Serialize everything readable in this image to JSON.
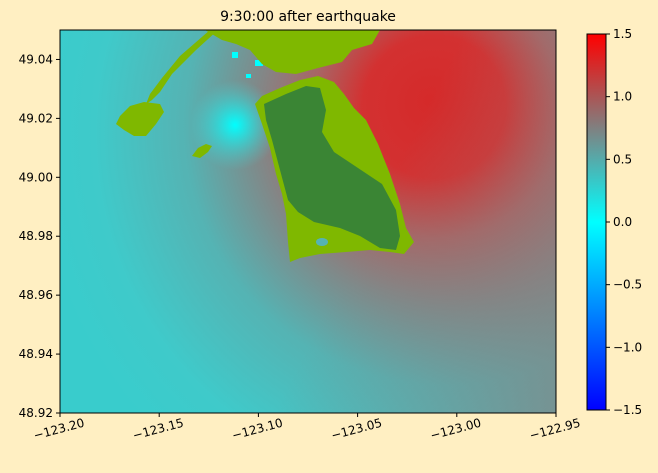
{
  "chart_data": {
    "type": "heatmap",
    "title": "9:30:00 after earthquake",
    "xlabel": "",
    "ylabel": "",
    "xlim": [
      -123.2,
      -122.95
    ],
    "ylim": [
      48.92,
      49.05
    ],
    "x_ticks": [
      "−123.20",
      "−123.15",
      "−123.10",
      "−123.05",
      "−123.00",
      "−122.95"
    ],
    "x_tick_values": [
      -123.2,
      -123.15,
      -123.1,
      -123.05,
      -123.0,
      -122.95
    ],
    "y_ticks": [
      "48.92",
      "48.94",
      "48.96",
      "48.98",
      "49.00",
      "49.02",
      "49.04"
    ],
    "y_tick_values": [
      48.92,
      48.94,
      48.96,
      48.98,
      49.0,
      49.02,
      49.04
    ],
    "colorbar": {
      "min": -1.5,
      "max": 1.5,
      "ticks": [
        "−1.5",
        "−1.0",
        "−0.5",
        "0.0",
        "0.5",
        "1.0",
        "1.5"
      ],
      "tick_values": [
        -1.5,
        -1.0,
        -0.5,
        0.0,
        0.5,
        1.0,
        1.5
      ],
      "colors": [
        "#0000ff",
        "#00ffff",
        "#808080",
        "#ff0000"
      ],
      "stops": [
        -1.5,
        0.0,
        0.75,
        1.5
      ]
    },
    "water_gradient": {
      "west_value": 0.45,
      "northeast_value": 1.35,
      "southeast_value": 0.7
    },
    "land_colors": {
      "land": "#7fb800",
      "dry_land": "#3a8534"
    }
  }
}
